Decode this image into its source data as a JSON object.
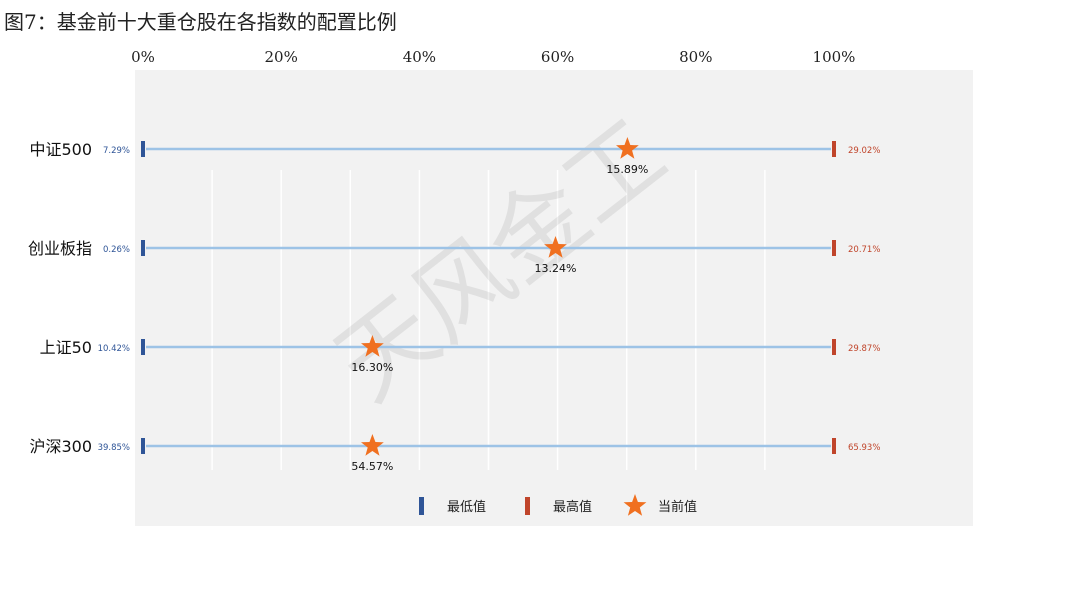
{
  "figure_title": "图7：基金前十大重仓股在各指数的配置比例",
  "watermark": "天风金工",
  "chart_data": {
    "type": "range-dot",
    "x_ticks": [
      "0%",
      "20%",
      "40%",
      "60%",
      "80%",
      "100%"
    ],
    "categories": [
      "中证500",
      "创业板指",
      "上证50",
      "沪深300"
    ],
    "min_values": [
      7.29,
      0.26,
      10.42,
      39.85
    ],
    "max_values": [
      29.02,
      20.71,
      29.87,
      65.93
    ],
    "current_values": [
      15.89,
      13.24,
      16.3,
      54.57
    ],
    "current_position_pct": [
      70.1,
      59.7,
      33.2,
      33.2
    ],
    "min_labels": [
      "7.29%",
      "0.26%",
      "10.42%",
      "39.85%"
    ],
    "max_labels": [
      "29.02%",
      "20.71%",
      "29.87%",
      "65.93%"
    ],
    "current_labels": [
      "15.89%",
      "13.24%",
      "16.30%",
      "54.57%"
    ],
    "legend": [
      "最低值",
      "最高值",
      "当前值"
    ],
    "legend_position": "bottom-center",
    "grid": true,
    "colors": {
      "min": "#2f5597",
      "max": "#c0452b",
      "current": "#f07020",
      "line": "#9dc3e6",
      "plot_bg": "#f2f2f2",
      "grid": "#ffffff"
    }
  }
}
